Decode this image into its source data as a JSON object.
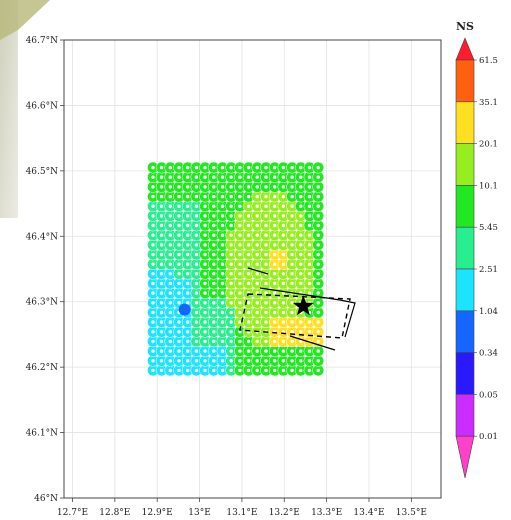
{
  "chart_data": {
    "type": "scatter",
    "kind": "geographic grid map",
    "x_ticks": [
      "12.7°E",
      "12.8°E",
      "12.9°E",
      "13°E",
      "13.1°E",
      "13.2°E",
      "13.3°E",
      "13.4°E",
      "13.5°E"
    ],
    "y_ticks": [
      "46°N",
      "46.1°N",
      "46.2°N",
      "46.3°N",
      "46.4°N",
      "46.5°N",
      "46.6°N",
      "46.7°N"
    ],
    "xlim": [
      12.68,
      13.57
    ],
    "ylim": [
      46.0,
      46.7
    ],
    "grid": true,
    "grid_points": {
      "lon_range": [
        12.89,
        13.28
      ],
      "lat_range": [
        46.195,
        46.505
      ],
      "lon_count": 20,
      "lat_count": 22
    },
    "classes": [
      {
        "label": "0.01",
        "color": "#ff40c8"
      },
      {
        "label": "0.05",
        "color": "#cc2cff"
      },
      {
        "label": "0.34",
        "color": "#2a18ff"
      },
      {
        "label": "1.04",
        "color": "#1466ff"
      },
      {
        "label": "2.51",
        "color": "#1ce4ff"
      },
      {
        "label": "5.45",
        "color": "#28ee90"
      },
      {
        "label": "10.1",
        "color": "#22e822"
      },
      {
        "label": "20.1",
        "color": "#96ee20"
      },
      {
        "label": "35.1",
        "color": "#ffe020"
      },
      {
        "label": "61.5",
        "color": "#ff6010"
      },
      {
        "label": "",
        "color": "#ff1c30"
      }
    ],
    "colorbar_title": "NS",
    "epicenter": {
      "lon": 13.245,
      "lat": 46.293,
      "symbol": "black star"
    },
    "highlight_point": {
      "lon": 12.965,
      "lat": 46.288,
      "color": "#1466ff"
    }
  }
}
